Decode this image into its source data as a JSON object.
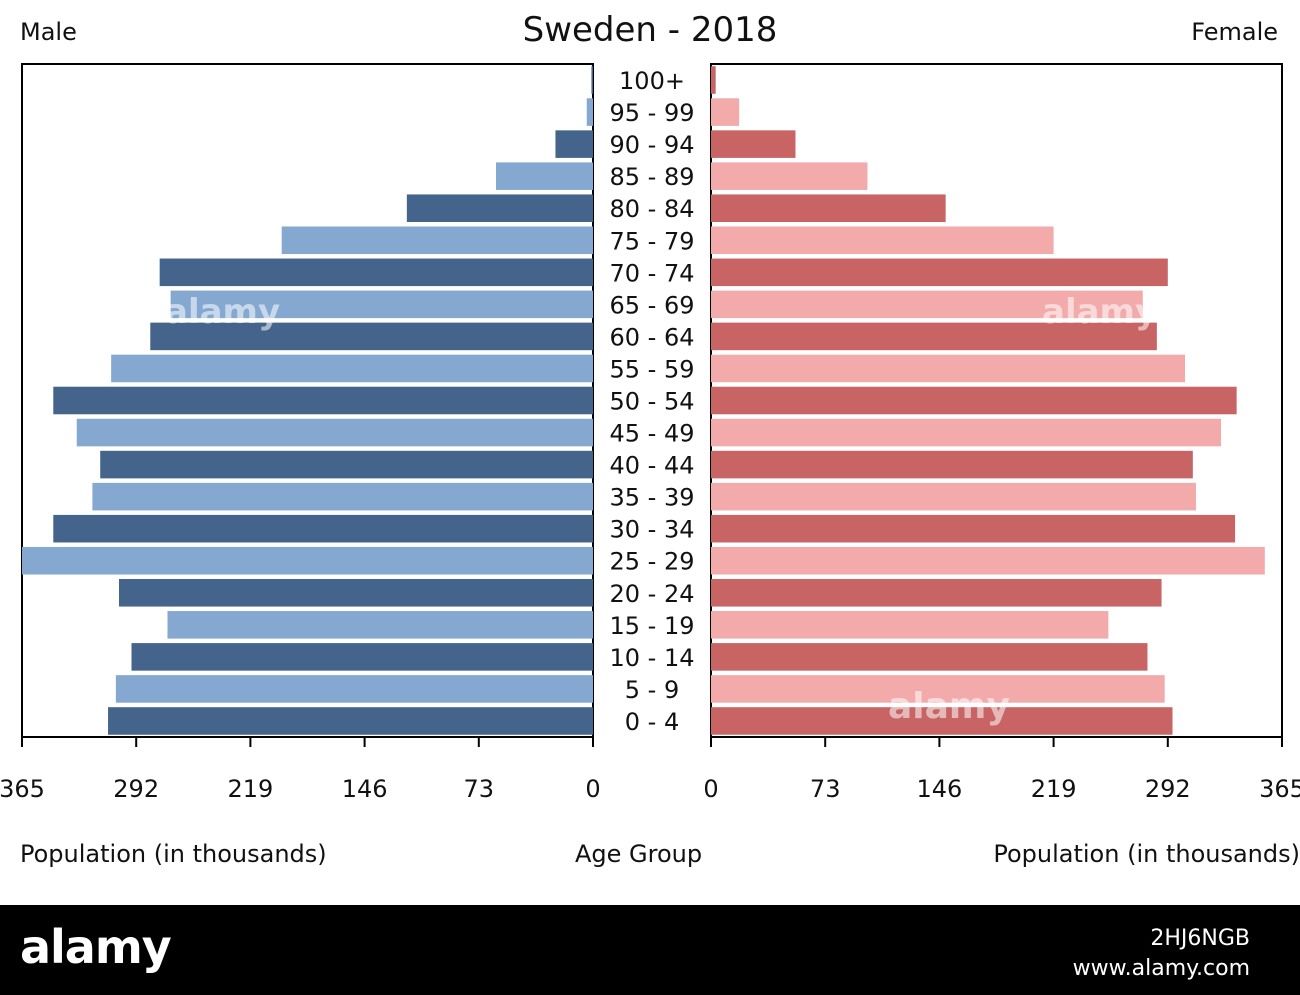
{
  "chart_data": {
    "type": "bar",
    "title": "Sweden - 2018",
    "left_label": "Male",
    "right_label": "Female",
    "xlabel_left": "Population (in thousands)",
    "xlabel_center": "Age Group",
    "xlabel_right": "Population (in thousands)",
    "xlim": [
      0,
      365
    ],
    "ticks": [
      0,
      73,
      146,
      219,
      292,
      365
    ],
    "categories": [
      "0 - 4",
      "5 - 9",
      "10 - 14",
      "15 - 19",
      "20 - 24",
      "25 - 29",
      "30 - 34",
      "35 - 39",
      "40 - 44",
      "45 - 49",
      "50 - 54",
      "55 - 59",
      "60 - 64",
      "65 - 69",
      "70 - 74",
      "75 - 79",
      "80 - 84",
      "85 - 89",
      "90 - 94",
      "95 - 99",
      "100+"
    ],
    "series": [
      {
        "name": "Male",
        "values": [
          310,
          305,
          295,
          272,
          303,
          365,
          345,
          320,
          315,
          330,
          345,
          308,
          283,
          270,
          277,
          199,
          119,
          62,
          24,
          4,
          1
        ]
      },
      {
        "name": "Female",
        "values": [
          295,
          290,
          279,
          254,
          288,
          354,
          335,
          310,
          308,
          326,
          336,
          303,
          285,
          276,
          292,
          219,
          150,
          100,
          54,
          18,
          3
        ]
      }
    ],
    "colors": {
      "male_dark": "#44648c",
      "male_light": "#84a8d0",
      "female_dark": "#c86464",
      "female_light": "#f2aaaa"
    }
  },
  "watermark": {
    "logo": "alamy",
    "stock_id": "2HJ6NGB",
    "url": "www.alamy.com"
  }
}
